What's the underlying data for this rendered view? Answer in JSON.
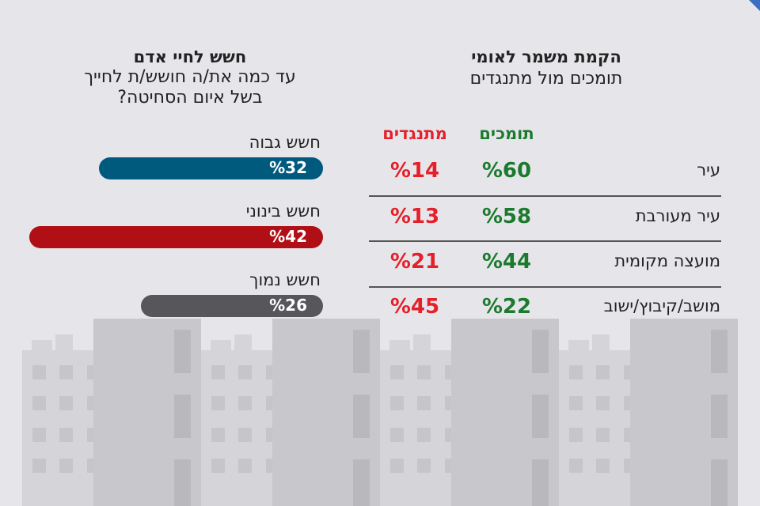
{
  "chart_data": [
    {
      "type": "bar",
      "orientation": "horizontal",
      "title": "חשש לחיי אדם",
      "subtitle": [
        "עד כמה את/ה חושש/ת לחייך",
        "בשל איום הסחיטה?"
      ],
      "categories": [
        "חשש גבוה",
        "חשש בינוני",
        "חשש נמוך"
      ],
      "values": [
        32,
        42,
        26
      ],
      "value_labels": [
        "%32",
        "%42",
        "%26"
      ],
      "colors": [
        "#005a7e",
        "#b00f16",
        "#57575b"
      ]
    },
    {
      "type": "table",
      "title": "הקמת משמר לאומי",
      "subtitle": "תומכים מול מתנגדים",
      "columns": [
        "תומכים",
        "מתנגדים"
      ],
      "column_colors": [
        "#1c7a2e",
        "#e5202a"
      ],
      "rows": [
        {
          "label": "עיר",
          "support": "%60",
          "oppose": "%14"
        },
        {
          "label": "עיר מעורבת",
          "support": "%58",
          "oppose": "%13"
        },
        {
          "label": "מועצה מקומית",
          "support": "%44",
          "oppose": "%21"
        },
        {
          "label": "מושב/קיבוץ/ישוב",
          "support": "%22",
          "oppose": "%45"
        }
      ]
    }
  ]
}
